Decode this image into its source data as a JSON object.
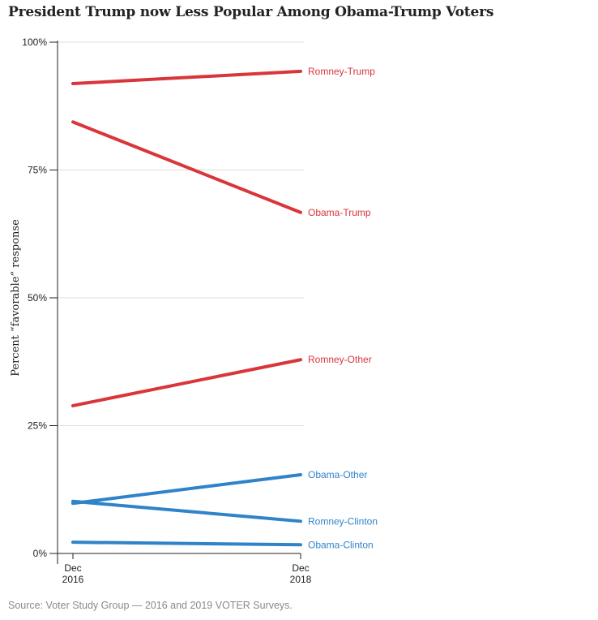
{
  "chart_data": {
    "type": "line",
    "title": "President Trump now Less Popular Among Obama-Trump Voters",
    "xlabel": "",
    "ylabel": "Percent “favorable” response",
    "x": [
      "Dec\n2016",
      "Dec\n2018"
    ],
    "x_tick_labels": [
      {
        "line1": "Dec",
        "line2": "2016"
      },
      {
        "line1": "Dec",
        "line2": "2018"
      }
    ],
    "ylim": [
      0,
      100
    ],
    "y_ticks": [
      0,
      25,
      50,
      75,
      100
    ],
    "y_tick_labels": [
      "0%",
      "25%",
      "50%",
      "75%",
      "100%"
    ],
    "grid": true,
    "legend": "direct-labels-right",
    "colors": {
      "trump_voters": "#d9363b",
      "other": "#2f83c9"
    },
    "series": [
      {
        "name": "Romney-Trump",
        "values": [
          91.9,
          94.3
        ],
        "color": "#d9363b"
      },
      {
        "name": "Obama-Trump",
        "values": [
          84.4,
          66.7
        ],
        "color": "#d9363b"
      },
      {
        "name": "Romney-Other",
        "values": [
          28.9,
          37.9
        ],
        "color": "#d9363b"
      },
      {
        "name": "Obama-Other",
        "values": [
          9.8,
          15.4
        ],
        "color": "#2f83c9"
      },
      {
        "name": "Romney-Clinton",
        "values": [
          10.2,
          6.3
        ],
        "color": "#2f83c9"
      },
      {
        "name": "Obama-Clinton",
        "values": [
          2.2,
          1.7
        ],
        "color": "#2f83c9"
      }
    ]
  },
  "source": "Source: Voter Study Group — 2016 and 2019 VOTER Surveys."
}
